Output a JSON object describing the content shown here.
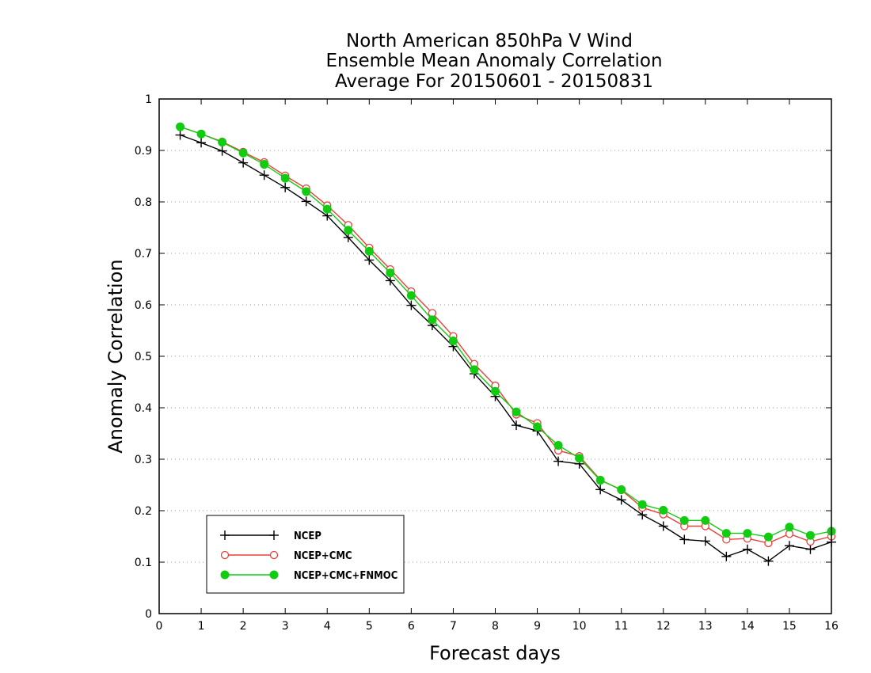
{
  "chart_data": {
    "type": "line",
    "title": [
      "North American 850hPa V Wind",
      "Ensemble Mean Anomaly Correlation",
      "Average For 20150601 - 20150831"
    ],
    "xlabel": "Forecast days",
    "ylabel": "Anomaly Correlation",
    "xlim": [
      0,
      16
    ],
    "ylim": [
      0,
      1
    ],
    "xticks": [
      0,
      1,
      2,
      3,
      4,
      5,
      6,
      7,
      8,
      9,
      10,
      11,
      12,
      13,
      14,
      15,
      16
    ],
    "xtick_labels": [
      "0",
      "1",
      "2",
      "3",
      "4",
      "5",
      "6",
      "7",
      "8",
      "9",
      "10",
      "11",
      "12",
      "13",
      "14",
      "15",
      "16"
    ],
    "yticks": [
      0,
      0.1,
      0.2,
      0.3,
      0.4,
      0.5,
      0.6,
      0.7,
      0.8,
      0.9,
      1
    ],
    "ytick_labels": [
      "0",
      "0.1",
      "0.2",
      "0.3",
      "0.4",
      "0.5",
      "0.6",
      "0.7",
      "0.8",
      "0.9",
      "1"
    ],
    "grid": "horizontal dotted",
    "legend_position": "bottom-left",
    "x": [
      0.5,
      1,
      1.5,
      2,
      2.5,
      3,
      3.5,
      4,
      4.5,
      5,
      5.5,
      6,
      6.5,
      7,
      7.5,
      8,
      8.5,
      9,
      9.5,
      10,
      10.5,
      11,
      11.5,
      12,
      12.5,
      13,
      13.5,
      14,
      14.5,
      15,
      15.5,
      16
    ],
    "series": [
      {
        "name": "NCEP",
        "color": "#000000",
        "marker": "plus",
        "values": [
          0.93,
          0.915,
          0.899,
          0.876,
          0.852,
          0.828,
          0.801,
          0.773,
          0.731,
          0.687,
          0.647,
          0.599,
          0.56,
          0.519,
          0.466,
          0.422,
          0.366,
          0.355,
          0.296,
          0.291,
          0.241,
          0.221,
          0.192,
          0.17,
          0.144,
          0.141,
          0.111,
          0.125,
          0.102,
          0.132,
          0.125,
          0.139
        ]
      },
      {
        "name": "NCEP+CMC",
        "color": "#e8413a",
        "marker": "open-circle",
        "values": [
          0.946,
          0.932,
          0.917,
          0.897,
          0.877,
          0.851,
          0.826,
          0.793,
          0.755,
          0.711,
          0.669,
          0.626,
          0.584,
          0.539,
          0.485,
          0.443,
          0.387,
          0.37,
          0.317,
          0.306,
          0.26,
          0.24,
          0.206,
          0.193,
          0.17,
          0.17,
          0.144,
          0.146,
          0.137,
          0.155,
          0.14,
          0.15
        ]
      },
      {
        "name": "NCEP+CMC+FNMOC",
        "color": "#11cc11",
        "marker": "filled-circle",
        "values": [
          0.946,
          0.932,
          0.916,
          0.895,
          0.873,
          0.846,
          0.82,
          0.786,
          0.745,
          0.704,
          0.662,
          0.618,
          0.571,
          0.53,
          0.474,
          0.432,
          0.392,
          0.363,
          0.327,
          0.302,
          0.259,
          0.241,
          0.212,
          0.201,
          0.181,
          0.181,
          0.156,
          0.156,
          0.149,
          0.168,
          0.152,
          0.16
        ]
      }
    ]
  }
}
